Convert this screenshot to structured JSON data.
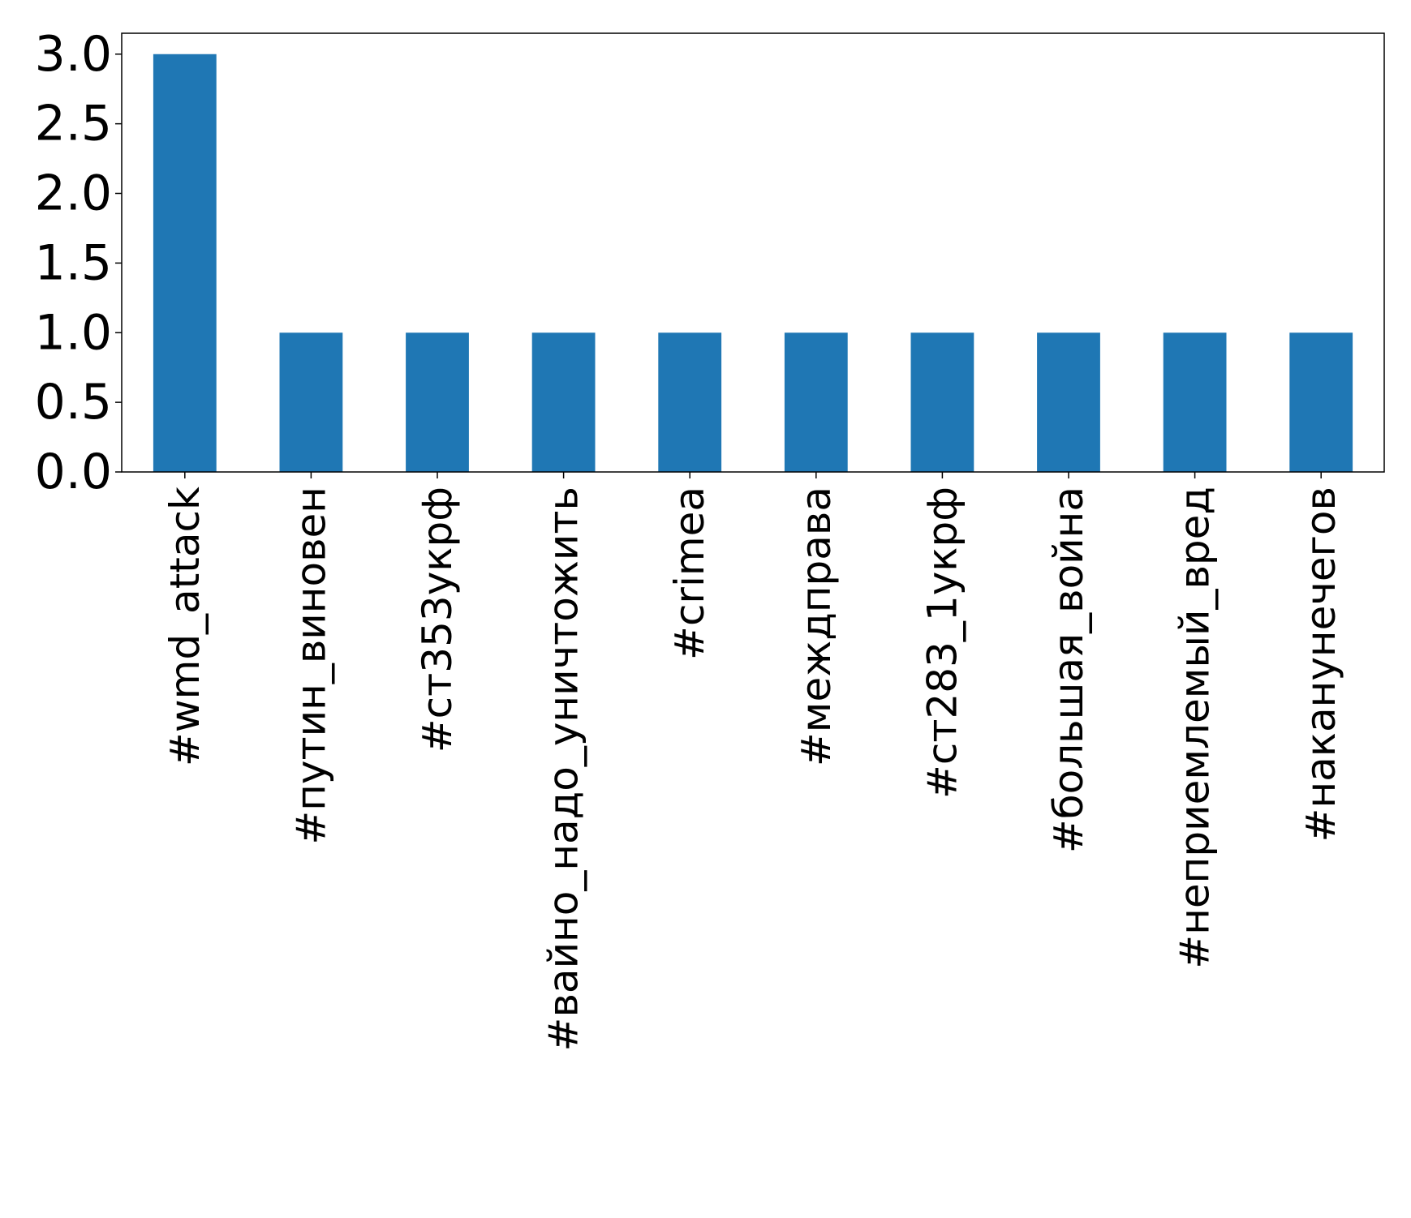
{
  "chart_data": {
    "type": "bar",
    "title": "",
    "xlabel": "",
    "ylabel": "",
    "categories": [
      "#wmd_attack",
      "#путин_виновен",
      "#ст353укрф",
      "#вайно_надо_уничтожить",
      "#crimea",
      "#междправа",
      "#ст283_1укрф",
      "#большая_война",
      "#неприемлемый_вред",
      "#накануне­чегов"
    ],
    "series": [
      {
        "values": [
          3,
          1,
          1,
          1,
          1,
          1,
          1,
          1,
          1,
          1
        ]
      }
    ],
    "ylim": [
      0,
      3.15
    ],
    "yticks": [
      "0.0",
      "0.5",
      "1.0",
      "1.5",
      "2.0",
      "2.5",
      "3.0"
    ],
    "ytick_values": [
      0,
      0.5,
      1.0,
      1.5,
      2.0,
      2.5,
      3.0
    ],
    "bar_color": "#1f77b4",
    "grid": false,
    "legend": "none"
  }
}
